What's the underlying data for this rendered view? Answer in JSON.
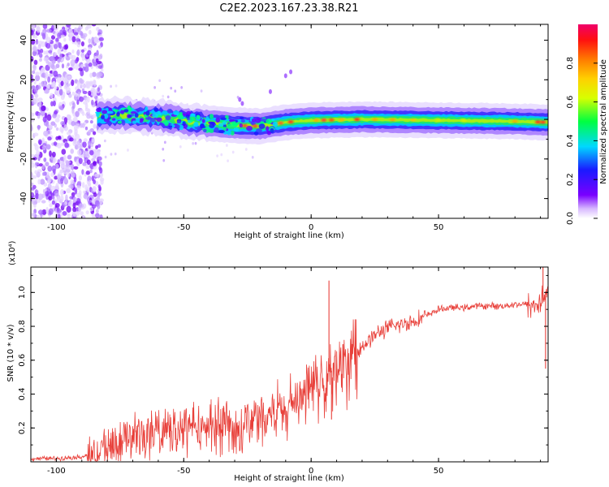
{
  "title": "C2E2.2023.167.23.38.R21",
  "chart_data": [
    {
      "type": "heatmap",
      "xlabel": "Height of straight line (km)",
      "ylabel": "Frequency (Hz)",
      "xlim": [
        -110,
        93
      ],
      "ylim": [
        -50,
        48
      ],
      "xticks": [
        -100,
        -50,
        0,
        50
      ],
      "xtick_labels": [
        "-100",
        "-50",
        "0",
        "50"
      ],
      "yticks": [
        -40,
        -20,
        0,
        20,
        40
      ],
      "ytick_labels": [
        "-40",
        "-20",
        "0",
        "20",
        "40"
      ],
      "colorbar": {
        "label": "Normalized spectral amplitude",
        "range": [
          0,
          1
        ],
        "ticks": [
          0.0,
          0.2,
          0.4,
          0.6,
          0.8
        ],
        "tick_labels": [
          "0.0",
          "0.2",
          "0.4",
          "0.6",
          "0.8"
        ],
        "colormap": "rainbow (white-violet-blue-cyan-green-yellow-orange-red-magenta)"
      },
      "ridge": [
        {
          "x": -85,
          "y": 1.5
        },
        {
          "x": -75,
          "y": 2.0
        },
        {
          "x": -60,
          "y": 1.0
        },
        {
          "x": -45,
          "y": -1.5
        },
        {
          "x": -30,
          "y": -3.0
        },
        {
          "x": -20,
          "y": -3.5
        },
        {
          "x": -10,
          "y": -1.5
        },
        {
          "x": 0,
          "y": -0.5
        },
        {
          "x": 20,
          "y": 0.0
        },
        {
          "x": 50,
          "y": -0.5
        },
        {
          "x": 80,
          "y": -1.0
        },
        {
          "x": 93,
          "y": -1.5
        }
      ]
    },
    {
      "type": "line",
      "xlabel": "Height of straight line (km)",
      "ylabel": "SNR (10 * v/v)",
      "y_multiplier": "(x10⁴)",
      "xlim": [
        -110,
        93
      ],
      "ylim": [
        0,
        1.15
      ],
      "xticks": [
        -100,
        -50,
        0,
        50
      ],
      "xtick_labels": [
        "-100",
        "-50",
        "0",
        "50"
      ],
      "yticks": [
        0.2,
        0.4,
        0.6,
        0.8,
        1.0
      ],
      "ytick_labels": [
        "0.2",
        "0.4",
        "0.6",
        "0.8",
        "1.0"
      ],
      "color": "#e8403a",
      "series": [
        {
          "x": [
            -110,
            -100,
            -90,
            -85,
            -80,
            -75,
            -70,
            -65,
            -60,
            -55,
            -50,
            -45,
            -40,
            -35,
            -30,
            -25,
            -20,
            -15,
            -10,
            -5,
            0,
            5,
            10,
            15,
            20,
            25,
            30,
            35,
            40,
            45,
            50,
            55,
            60,
            65,
            70,
            75,
            80,
            85,
            88,
            90,
            93
          ],
          "y": [
            0.02,
            0.02,
            0.03,
            0.05,
            0.1,
            0.15,
            0.16,
            0.18,
            0.18,
            0.2,
            0.2,
            0.22,
            0.22,
            0.23,
            0.2,
            0.25,
            0.28,
            0.3,
            0.36,
            0.42,
            0.48,
            0.52,
            0.55,
            0.62,
            0.68,
            0.75,
            0.79,
            0.81,
            0.83,
            0.86,
            0.9,
            0.91,
            0.91,
            0.92,
            0.92,
            0.92,
            0.93,
            0.93,
            0.92,
            0.95,
            1.0
          ]
        }
      ],
      "spikes": [
        {
          "x": 7,
          "y": 1.07
        },
        {
          "x": 8,
          "y": 0.25
        },
        {
          "x": 91,
          "y": 1.15
        },
        {
          "x": 92,
          "y": 0.55
        }
      ]
    }
  ]
}
